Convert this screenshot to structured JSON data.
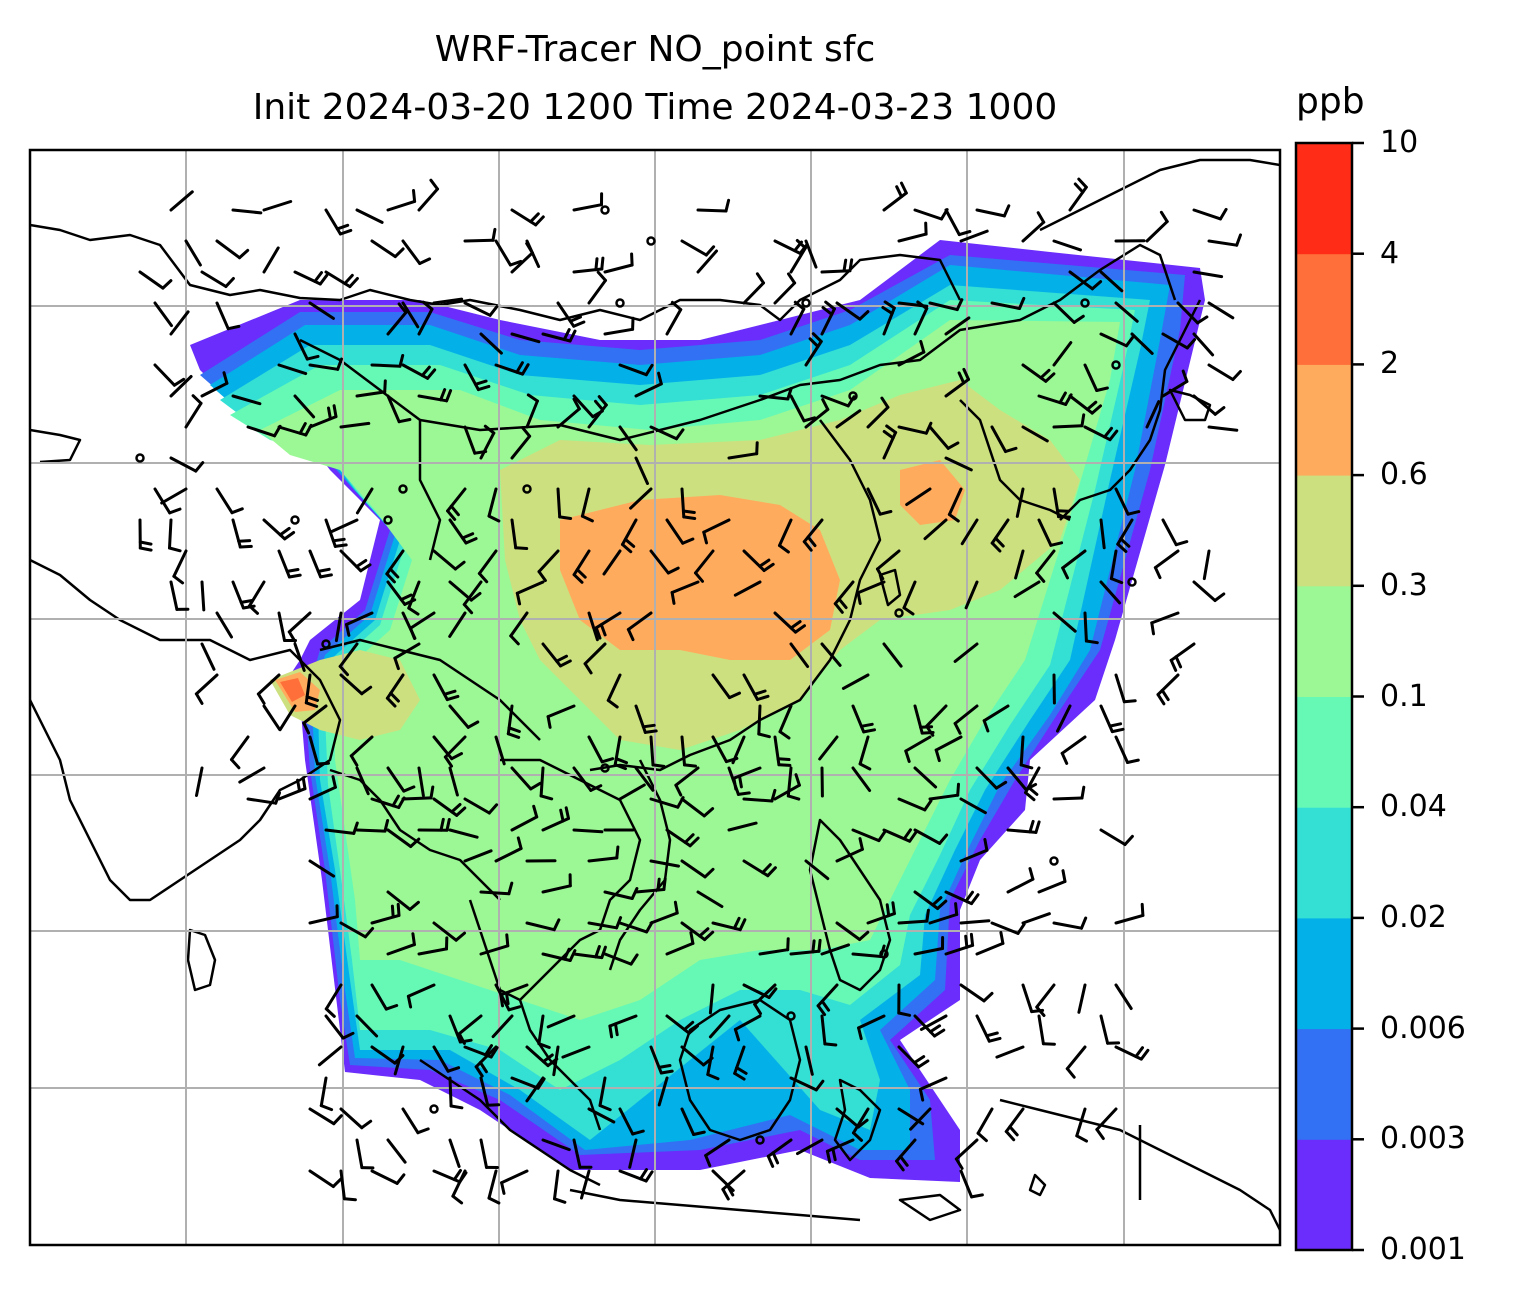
{
  "title_line1": "WRF-Tracer NO_point sfc",
  "title_line2": "Init 2024-03-20 1200 Time 2024-03-23 1000",
  "colorbar": {
    "unit": "ppb",
    "levels": [
      "0.001",
      "0.003",
      "0.006",
      "0.02",
      "0.04",
      "0.1",
      "0.3",
      "0.6",
      "2",
      "4",
      "10"
    ],
    "colors": [
      "#6a2dfb",
      "#3271f4",
      "#04b0e8",
      "#34dfd4",
      "#66f9b6",
      "#9bf895",
      "#cde07f",
      "#ffab5d",
      "#ff6f3a",
      "#ff2d17"
    ]
  },
  "map": {
    "gridlines": "on",
    "coastlines": "black",
    "overlay": "wind barbs"
  }
}
